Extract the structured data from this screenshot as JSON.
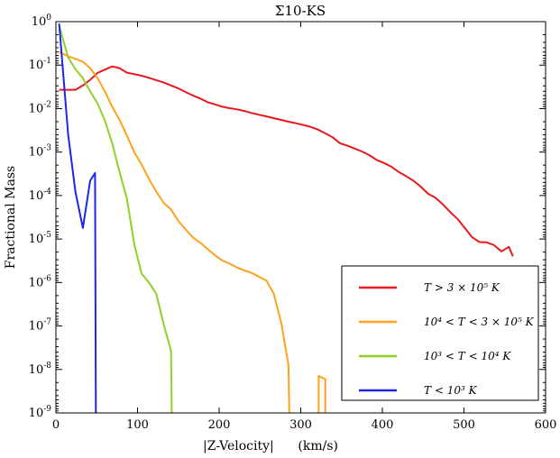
{
  "chart_data": {
    "type": "line",
    "title": "Σ10-KS",
    "xlabel": "|Z-Velocity|      (km/s)",
    "ylabel": "Fractional Mass",
    "xlim": [
      0,
      600
    ],
    "ylim_exponent": [
      -9,
      0
    ],
    "yscale": "log",
    "grid": false,
    "legend_position": "lower-right",
    "x_ticks": [
      "0",
      "100",
      "200",
      "300",
      "400",
      "500",
      "600"
    ],
    "y_ticks": [
      {
        "base": "10",
        "exp": "0"
      },
      {
        "base": "10",
        "exp": "-1"
      },
      {
        "base": "10",
        "exp": "-2"
      },
      {
        "base": "10",
        "exp": "-3"
      },
      {
        "base": "10",
        "exp": "-4"
      },
      {
        "base": "10",
        "exp": "-5"
      },
      {
        "base": "10",
        "exp": "-6"
      },
      {
        "base": "10",
        "exp": "-7"
      },
      {
        "base": "10",
        "exp": "-8"
      },
      {
        "base": "10",
        "exp": "-9"
      }
    ],
    "series": [
      {
        "name": "T > 3 × 10⁵ K",
        "color": "#e8191c",
        "points": [
          [
            4,
            0.027
          ],
          [
            15,
            0.027
          ],
          [
            24,
            0.027
          ],
          [
            33,
            0.034
          ],
          [
            42,
            0.046
          ],
          [
            51,
            0.066
          ],
          [
            60,
            0.079
          ],
          [
            69,
            0.093
          ],
          [
            78,
            0.085
          ],
          [
            87,
            0.067
          ],
          [
            96,
            0.062
          ],
          [
            105,
            0.057
          ],
          [
            114,
            0.051
          ],
          [
            123,
            0.045
          ],
          [
            132,
            0.04
          ],
          [
            141,
            0.034
          ],
          [
            150,
            0.029
          ],
          [
            159,
            0.024
          ],
          [
            168,
            0.02
          ],
          [
            177,
            0.017
          ],
          [
            186,
            0.014
          ],
          [
            195,
            0.0125
          ],
          [
            204,
            0.011
          ],
          [
            213,
            0.0102
          ],
          [
            222,
            0.0096
          ],
          [
            231,
            0.0088
          ],
          [
            240,
            0.0079
          ],
          [
            249,
            0.0072
          ],
          [
            258,
            0.0066
          ],
          [
            267,
            0.006
          ],
          [
            276,
            0.0055
          ],
          [
            285,
            0.005
          ],
          [
            294,
            0.0046
          ],
          [
            303,
            0.0042
          ],
          [
            312,
            0.0038
          ],
          [
            321,
            0.0033
          ],
          [
            330,
            0.0027
          ],
          [
            339,
            0.0022
          ],
          [
            348,
            0.0016
          ],
          [
            357,
            0.0014
          ],
          [
            366,
            0.0012
          ],
          [
            375,
            0.00103
          ],
          [
            384,
            0.00085
          ],
          [
            393,
            0.00066
          ],
          [
            402,
            0.00056
          ],
          [
            411,
            0.00046
          ],
          [
            420,
            0.00035
          ],
          [
            429,
            0.00028
          ],
          [
            438,
            0.00022
          ],
          [
            447,
            0.00016
          ],
          [
            456,
            0.00011
          ],
          [
            465,
            8.9e-05
          ],
          [
            474,
            6.3e-05
          ],
          [
            483,
            4.2e-05
          ],
          [
            492,
            2.9e-05
          ],
          [
            501,
            1.8e-05
          ],
          [
            510,
            1.1e-05
          ],
          [
            519,
            8.5e-06
          ],
          [
            528,
            8.4e-06
          ],
          [
            537,
            7.2e-06
          ],
          [
            546,
            5.2e-06
          ],
          [
            555,
            6.6e-06
          ],
          [
            560,
            4e-06
          ]
        ]
      },
      {
        "name": "10⁴ < T < 3 × 10⁵ K",
        "color": "#ffa11a",
        "points": [
          [
            4,
            0.2
          ],
          [
            15,
            0.16
          ],
          [
            24,
            0.14
          ],
          [
            33,
            0.12
          ],
          [
            42,
            0.085
          ],
          [
            51,
            0.05
          ],
          [
            60,
            0.025
          ],
          [
            69,
            0.011
          ],
          [
            78,
            0.0055
          ],
          [
            87,
            0.0024
          ],
          [
            96,
            0.001
          ],
          [
            105,
            0.00052
          ],
          [
            114,
            0.00024
          ],
          [
            123,
            0.000124
          ],
          [
            132,
            6.8e-05
          ],
          [
            141,
            4.8e-05
          ],
          [
            150,
            2.6e-05
          ],
          [
            159,
            1.65e-05
          ],
          [
            168,
            1.08e-05
          ],
          [
            177,
            8.2e-06
          ],
          [
            186,
            5.9e-06
          ],
          [
            195,
            4.2e-06
          ],
          [
            204,
            3.2e-06
          ],
          [
            213,
            2.7e-06
          ],
          [
            222,
            2.2e-06
          ],
          [
            231,
            1.9e-06
          ],
          [
            240,
            1.65e-06
          ],
          [
            249,
            1.35e-06
          ],
          [
            258,
            1.1e-06
          ],
          [
            267,
            5.5e-07
          ],
          [
            276,
            1.2e-07
          ],
          [
            285,
            1.25e-08
          ],
          [
            286,
            1e-09
          ]
        ]
      },
      {
        "name": "10³ < T < 10⁴ K",
        "color": "#8fd129",
        "points": [
          [
            4,
            0.8
          ],
          [
            15,
            0.15
          ],
          [
            24,
            0.08
          ],
          [
            33,
            0.05
          ],
          [
            42,
            0.025
          ],
          [
            51,
            0.013
          ],
          [
            60,
            0.0053
          ],
          [
            69,
            0.0016
          ],
          [
            78,
            0.00035
          ],
          [
            87,
            8.5e-05
          ],
          [
            96,
            7.5e-06
          ],
          [
            105,
            1.6e-06
          ],
          [
            114,
            1e-06
          ],
          [
            123,
            5.5e-07
          ],
          [
            132,
            1.1e-07
          ],
          [
            141,
            2.7e-08
          ],
          [
            142,
            1e-09
          ]
        ]
      },
      {
        "name": "T < 10³ K",
        "color": "#1a26ea",
        "points": [
          [
            4,
            0.9
          ],
          [
            15,
            0.0025
          ],
          [
            24,
            0.00012
          ],
          [
            33,
            1.8e-05
          ],
          [
            42,
            0.00022
          ],
          [
            48,
            0.00033
          ],
          [
            49,
            1e-09
          ]
        ]
      }
    ]
  }
}
